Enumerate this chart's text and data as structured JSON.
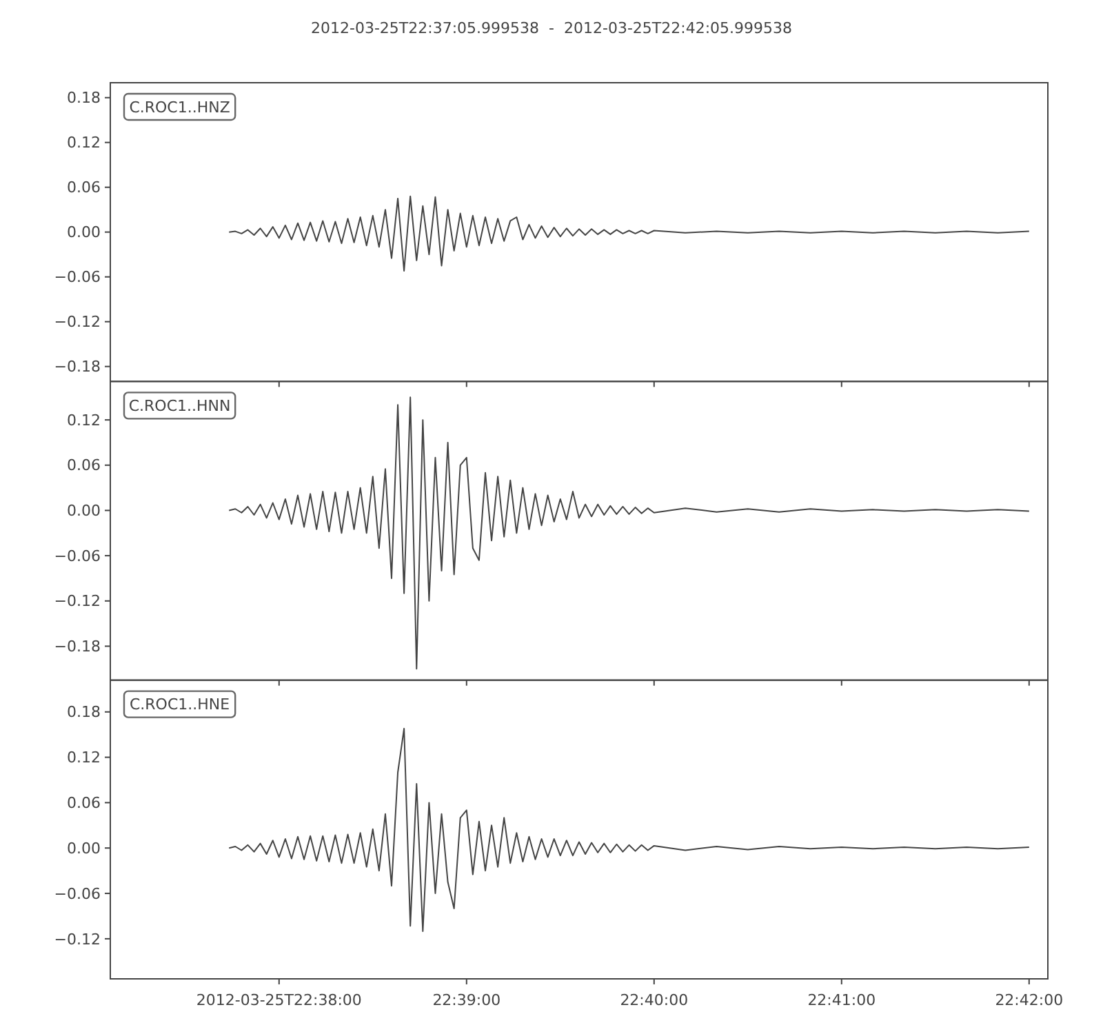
{
  "chart_data": [
    {
      "type": "line",
      "title": "2012-03-25T22:37:05.999538  -  2012-03-25T22:42:05.999538",
      "annotations": [
        "C.ROC1..HNZ"
      ],
      "tick_labels": "y",
      "grid": false,
      "xlim": [
        "2012-03-25T22:37:05.999538",
        "2012-03-25T22:42:05.999538"
      ],
      "xticks": [
        {
          "value": "2012-03-25T22:38:00",
          "label": null
        },
        {
          "value": "2012-03-25T22:39:00",
          "label": null
        },
        {
          "value": "2012-03-25T22:40:00",
          "label": null
        },
        {
          "value": "2012-03-25T22:41:00",
          "label": null
        },
        {
          "value": "2012-03-25T22:42:00",
          "label": null
        }
      ],
      "ylim": [
        -0.2,
        0.2
      ],
      "yticks": [
        {
          "value": -0.18,
          "label": "−0.18"
        },
        {
          "value": -0.12,
          "label": "−0.12"
        },
        {
          "value": -0.06,
          "label": "−0.06"
        },
        {
          "value": 0,
          "label": "0.00"
        },
        {
          "value": 0.06,
          "label": "0.06"
        },
        {
          "value": 0.12,
          "label": "0.12"
        },
        {
          "value": 0.18,
          "label": "0.18"
        }
      ],
      "x": [
        "2012-03-25T22:37:44",
        "2012-03-25T22:37:46",
        "2012-03-25T22:37:48",
        "2012-03-25T22:37:50",
        "2012-03-25T22:37:52",
        "2012-03-25T22:37:54",
        "2012-03-25T22:37:56",
        "2012-03-25T22:37:58",
        "2012-03-25T22:38:00",
        "2012-03-25T22:38:02",
        "2012-03-25T22:38:04",
        "2012-03-25T22:38:06",
        "2012-03-25T22:38:08",
        "2012-03-25T22:38:10",
        "2012-03-25T22:38:12",
        "2012-03-25T22:38:14",
        "2012-03-25T22:38:16",
        "2012-03-25T22:38:18",
        "2012-03-25T22:38:20",
        "2012-03-25T22:38:22",
        "2012-03-25T22:38:24",
        "2012-03-25T22:38:26",
        "2012-03-25T22:38:28",
        "2012-03-25T22:38:30",
        "2012-03-25T22:38:32",
        "2012-03-25T22:38:34",
        "2012-03-25T22:38:36",
        "2012-03-25T22:38:38",
        "2012-03-25T22:38:40",
        "2012-03-25T22:38:42",
        "2012-03-25T22:38:44",
        "2012-03-25T22:38:46",
        "2012-03-25T22:38:48",
        "2012-03-25T22:38:50",
        "2012-03-25T22:38:52",
        "2012-03-25T22:38:54",
        "2012-03-25T22:38:56",
        "2012-03-25T22:38:58",
        "2012-03-25T22:39:00",
        "2012-03-25T22:39:02",
        "2012-03-25T22:39:04",
        "2012-03-25T22:39:06",
        "2012-03-25T22:39:08",
        "2012-03-25T22:39:10",
        "2012-03-25T22:39:12",
        "2012-03-25T22:39:14",
        "2012-03-25T22:39:16",
        "2012-03-25T22:39:18",
        "2012-03-25T22:39:20",
        "2012-03-25T22:39:22",
        "2012-03-25T22:39:24",
        "2012-03-25T22:39:26",
        "2012-03-25T22:39:28",
        "2012-03-25T22:39:30",
        "2012-03-25T22:39:32",
        "2012-03-25T22:39:34",
        "2012-03-25T22:39:36",
        "2012-03-25T22:39:38",
        "2012-03-25T22:39:40",
        "2012-03-25T22:39:42",
        "2012-03-25T22:39:44",
        "2012-03-25T22:39:46",
        "2012-03-25T22:39:48",
        "2012-03-25T22:39:50",
        "2012-03-25T22:39:52",
        "2012-03-25T22:39:54",
        "2012-03-25T22:39:56",
        "2012-03-25T22:39:58",
        "2012-03-25T22:40:00",
        "2012-03-25T22:40:10",
        "2012-03-25T22:40:20",
        "2012-03-25T22:40:30",
        "2012-03-25T22:40:40",
        "2012-03-25T22:40:50",
        "2012-03-25T22:41:00",
        "2012-03-25T22:41:10",
        "2012-03-25T22:41:20",
        "2012-03-25T22:41:30",
        "2012-03-25T22:41:40",
        "2012-03-25T22:41:50",
        "2012-03-25T22:42:00"
      ],
      "series": [
        {
          "color": "#444444",
          "values": [
            0,
            0.001,
            -0.002,
            0.003,
            -0.004,
            0.005,
            -0.006,
            0.007,
            -0.008,
            0.009,
            -0.01,
            0.012,
            -0.011,
            0.013,
            -0.012,
            0.015,
            -0.013,
            0.014,
            -0.015,
            0.018,
            -0.014,
            0.02,
            -0.018,
            0.022,
            -0.02,
            0.03,
            -0.035,
            0.045,
            -0.052,
            0.048,
            -0.038,
            0.035,
            -0.03,
            0.047,
            -0.045,
            0.03,
            -0.025,
            0.025,
            -0.02,
            0.022,
            -0.018,
            0.02,
            -0.015,
            0.018,
            -0.012,
            0.015,
            0.02,
            -0.01,
            0.01,
            -0.008,
            0.008,
            -0.007,
            0.006,
            -0.006,
            0.005,
            -0.005,
            0.004,
            -0.004,
            0.004,
            -0.003,
            0.003,
            -0.003,
            0.003,
            -0.002,
            0.002,
            -0.002,
            0.002,
            -0.002,
            0.002,
            -0.001,
            0.001,
            -0.001,
            0.001,
            -0.001,
            0.001,
            -0.001,
            0.001,
            -0.001,
            0.001,
            -0.001,
            0.001
          ]
        }
      ]
    },
    {
      "type": "line",
      "annotations": [
        "C.ROC1..HNN"
      ],
      "tick_labels": "y",
      "grid": false,
      "xlim": [
        "2012-03-25T22:37:05.999538",
        "2012-03-25T22:42:05.999538"
      ],
      "xticks": [
        {
          "value": "2012-03-25T22:38:00",
          "label": null
        },
        {
          "value": "2012-03-25T22:39:00",
          "label": null
        },
        {
          "value": "2012-03-25T22:40:00",
          "label": null
        },
        {
          "value": "2012-03-25T22:41:00",
          "label": null
        },
        {
          "value": "2012-03-25T22:42:00",
          "label": null
        }
      ],
      "ylim": [
        -0.225,
        0.171
      ],
      "yticks": [
        {
          "value": -0.18,
          "label": "−0.18"
        },
        {
          "value": -0.12,
          "label": "−0.12"
        },
        {
          "value": -0.06,
          "label": "−0.06"
        },
        {
          "value": 0,
          "label": "0.00"
        },
        {
          "value": 0.06,
          "label": "0.06"
        },
        {
          "value": 0.12,
          "label": "0.12"
        }
      ],
      "x": [
        "2012-03-25T22:37:44",
        "2012-03-25T22:37:46",
        "2012-03-25T22:37:48",
        "2012-03-25T22:37:50",
        "2012-03-25T22:37:52",
        "2012-03-25T22:37:54",
        "2012-03-25T22:37:56",
        "2012-03-25T22:37:58",
        "2012-03-25T22:38:00",
        "2012-03-25T22:38:02",
        "2012-03-25T22:38:04",
        "2012-03-25T22:38:06",
        "2012-03-25T22:38:08",
        "2012-03-25T22:38:10",
        "2012-03-25T22:38:12",
        "2012-03-25T22:38:14",
        "2012-03-25T22:38:16",
        "2012-03-25T22:38:18",
        "2012-03-25T22:38:20",
        "2012-03-25T22:38:22",
        "2012-03-25T22:38:24",
        "2012-03-25T22:38:26",
        "2012-03-25T22:38:28",
        "2012-03-25T22:38:30",
        "2012-03-25T22:38:32",
        "2012-03-25T22:38:34",
        "2012-03-25T22:38:36",
        "2012-03-25T22:38:38",
        "2012-03-25T22:38:40",
        "2012-03-25T22:38:42",
        "2012-03-25T22:38:44",
        "2012-03-25T22:38:46",
        "2012-03-25T22:38:48",
        "2012-03-25T22:38:50",
        "2012-03-25T22:38:52",
        "2012-03-25T22:38:54",
        "2012-03-25T22:38:56",
        "2012-03-25T22:38:58",
        "2012-03-25T22:39:00",
        "2012-03-25T22:39:02",
        "2012-03-25T22:39:04",
        "2012-03-25T22:39:06",
        "2012-03-25T22:39:08",
        "2012-03-25T22:39:10",
        "2012-03-25T22:39:12",
        "2012-03-25T22:39:14",
        "2012-03-25T22:39:16",
        "2012-03-25T22:39:18",
        "2012-03-25T22:39:20",
        "2012-03-25T22:39:22",
        "2012-03-25T22:39:24",
        "2012-03-25T22:39:26",
        "2012-03-25T22:39:28",
        "2012-03-25T22:39:30",
        "2012-03-25T22:39:32",
        "2012-03-25T22:39:34",
        "2012-03-25T22:39:36",
        "2012-03-25T22:39:38",
        "2012-03-25T22:39:40",
        "2012-03-25T22:39:42",
        "2012-03-25T22:39:44",
        "2012-03-25T22:39:46",
        "2012-03-25T22:39:48",
        "2012-03-25T22:39:50",
        "2012-03-25T22:39:52",
        "2012-03-25T22:39:54",
        "2012-03-25T22:39:56",
        "2012-03-25T22:39:58",
        "2012-03-25T22:40:00",
        "2012-03-25T22:40:10",
        "2012-03-25T22:40:20",
        "2012-03-25T22:40:30",
        "2012-03-25T22:40:40",
        "2012-03-25T22:40:50",
        "2012-03-25T22:41:00",
        "2012-03-25T22:41:10",
        "2012-03-25T22:41:20",
        "2012-03-25T22:41:30",
        "2012-03-25T22:41:40",
        "2012-03-25T22:41:50",
        "2012-03-25T22:42:00"
      ],
      "series": [
        {
          "color": "#444444",
          "values": [
            0,
            0.002,
            -0.003,
            0.005,
            -0.006,
            0.008,
            -0.01,
            0.01,
            -0.012,
            0.015,
            -0.018,
            0.02,
            -0.022,
            0.022,
            -0.025,
            0.025,
            -0.028,
            0.024,
            -0.03,
            0.025,
            -0.025,
            0.03,
            -0.03,
            0.045,
            -0.05,
            0.055,
            -0.09,
            0.14,
            -0.11,
            0.15,
            -0.21,
            0.12,
            -0.12,
            0.07,
            -0.08,
            0.09,
            -0.085,
            0.06,
            0.07,
            -0.05,
            -0.066,
            0.05,
            -0.04,
            0.045,
            -0.035,
            0.04,
            -0.03,
            0.03,
            -0.025,
            0.022,
            -0.02,
            0.02,
            -0.015,
            0.015,
            -0.012,
            0.025,
            -0.01,
            0.008,
            -0.008,
            0.008,
            -0.006,
            0.006,
            -0.005,
            0.005,
            -0.005,
            0.004,
            -0.004,
            0.003,
            -0.003,
            0.003,
            -0.002,
            0.002,
            -0.002,
            0.002,
            -0.001,
            0.001,
            -0.001,
            0.001,
            -0.001,
            0.001,
            -0.001
          ]
        }
      ]
    },
    {
      "type": "line",
      "annotations": [
        "C.ROC1..HNE"
      ],
      "grid": false,
      "xlim": [
        "2012-03-25T22:37:05.999538",
        "2012-03-25T22:42:05.999538"
      ],
      "xticks": [
        {
          "value": "2012-03-25T22:38:00",
          "label": "2012-03-25T22:38:00"
        },
        {
          "value": "2012-03-25T22:39:00",
          "label": "22:39:00"
        },
        {
          "value": "2012-03-25T22:40:00",
          "label": "22:40:00"
        },
        {
          "value": "2012-03-25T22:41:00",
          "label": "22:41:00"
        },
        {
          "value": "2012-03-25T22:42:00",
          "label": "22:42:00"
        }
      ],
      "ylim": [
        -0.173,
        0.222
      ],
      "yticks": [
        {
          "value": -0.12,
          "label": "−0.12"
        },
        {
          "value": -0.06,
          "label": "−0.06"
        },
        {
          "value": 0,
          "label": "0.00"
        },
        {
          "value": 0.06,
          "label": "0.06"
        },
        {
          "value": 0.12,
          "label": "0.12"
        },
        {
          "value": 0.18,
          "label": "0.18"
        }
      ],
      "x": [
        "2012-03-25T22:37:44",
        "2012-03-25T22:37:46",
        "2012-03-25T22:37:48",
        "2012-03-25T22:37:50",
        "2012-03-25T22:37:52",
        "2012-03-25T22:37:54",
        "2012-03-25T22:37:56",
        "2012-03-25T22:37:58",
        "2012-03-25T22:38:00",
        "2012-03-25T22:38:02",
        "2012-03-25T22:38:04",
        "2012-03-25T22:38:06",
        "2012-03-25T22:38:08",
        "2012-03-25T22:38:10",
        "2012-03-25T22:38:12",
        "2012-03-25T22:38:14",
        "2012-03-25T22:38:16",
        "2012-03-25T22:38:18",
        "2012-03-25T22:38:20",
        "2012-03-25T22:38:22",
        "2012-03-25T22:38:24",
        "2012-03-25T22:38:26",
        "2012-03-25T22:38:28",
        "2012-03-25T22:38:30",
        "2012-03-25T22:38:32",
        "2012-03-25T22:38:34",
        "2012-03-25T22:38:36",
        "2012-03-25T22:38:38",
        "2012-03-25T22:38:40",
        "2012-03-25T22:38:42",
        "2012-03-25T22:38:44",
        "2012-03-25T22:38:46",
        "2012-03-25T22:38:48",
        "2012-03-25T22:38:50",
        "2012-03-25T22:38:52",
        "2012-03-25T22:38:54",
        "2012-03-25T22:38:56",
        "2012-03-25T22:38:58",
        "2012-03-25T22:39:00",
        "2012-03-25T22:39:02",
        "2012-03-25T22:39:04",
        "2012-03-25T22:39:06",
        "2012-03-25T22:39:08",
        "2012-03-25T22:39:10",
        "2012-03-25T22:39:12",
        "2012-03-25T22:39:14",
        "2012-03-25T22:39:16",
        "2012-03-25T22:39:18",
        "2012-03-25T22:39:20",
        "2012-03-25T22:39:22",
        "2012-03-25T22:39:24",
        "2012-03-25T22:39:26",
        "2012-03-25T22:39:28",
        "2012-03-25T22:39:30",
        "2012-03-25T22:39:32",
        "2012-03-25T22:39:34",
        "2012-03-25T22:39:36",
        "2012-03-25T22:39:38",
        "2012-03-25T22:39:40",
        "2012-03-25T22:39:42",
        "2012-03-25T22:39:44",
        "2012-03-25T22:39:46",
        "2012-03-25T22:39:48",
        "2012-03-25T22:39:50",
        "2012-03-25T22:39:52",
        "2012-03-25T22:39:54",
        "2012-03-25T22:39:56",
        "2012-03-25T22:39:58",
        "2012-03-25T22:40:00",
        "2012-03-25T22:40:10",
        "2012-03-25T22:40:20",
        "2012-03-25T22:40:30",
        "2012-03-25T22:40:40",
        "2012-03-25T22:40:50",
        "2012-03-25T22:41:00",
        "2012-03-25T22:41:10",
        "2012-03-25T22:41:20",
        "2012-03-25T22:41:30",
        "2012-03-25T22:41:40",
        "2012-03-25T22:41:50",
        "2012-03-25T22:42:00"
      ],
      "series": [
        {
          "color": "#444444",
          "values": [
            0,
            0.002,
            -0.003,
            0.004,
            -0.005,
            0.006,
            -0.008,
            0.01,
            -0.012,
            0.012,
            -0.014,
            0.015,
            -0.015,
            0.016,
            -0.017,
            0.016,
            -0.018,
            0.017,
            -0.02,
            0.018,
            -0.02,
            0.02,
            -0.025,
            0.025,
            -0.03,
            0.045,
            -0.05,
            0.1,
            0.158,
            -0.103,
            0.085,
            -0.11,
            0.06,
            -0.06,
            0.045,
            -0.045,
            -0.08,
            0.04,
            0.05,
            -0.035,
            0.035,
            -0.03,
            0.03,
            -0.025,
            0.04,
            -0.02,
            0.02,
            -0.018,
            0.015,
            -0.015,
            0.012,
            -0.012,
            0.012,
            -0.01,
            0.01,
            -0.01,
            0.008,
            -0.008,
            0.007,
            -0.006,
            0.006,
            -0.006,
            0.005,
            -0.005,
            0.004,
            -0.004,
            0.004,
            -0.003,
            0.003,
            -0.003,
            0.002,
            -0.002,
            0.002,
            -0.001,
            0.001,
            -0.001,
            0.001,
            -0.001,
            0.001,
            -0.001,
            0.001
          ]
        }
      ]
    }
  ]
}
